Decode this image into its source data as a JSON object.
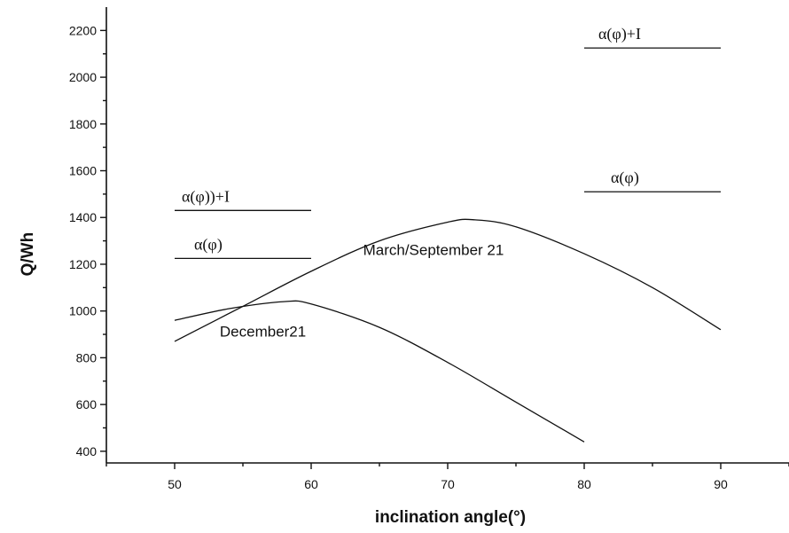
{
  "chart_data": {
    "type": "line",
    "xlabel": "inclination angle(°)",
    "ylabel": "Q/Wh",
    "xlim": [
      45,
      95
    ],
    "ylim": [
      350,
      2300
    ],
    "x_ticks": [
      50,
      60,
      70,
      80,
      90
    ],
    "y_ticks": [
      400,
      600,
      800,
      1000,
      1200,
      1400,
      1600,
      1800,
      2000,
      2200
    ],
    "grid": false,
    "series": [
      {
        "name": "March/September 21",
        "x": [
          50,
          55,
          60,
          65,
          70,
          72,
          75,
          80,
          85,
          90
        ],
        "y": [
          870,
          1020,
          1170,
          1300,
          1380,
          1390,
          1360,
          1245,
          1100,
          920
        ]
      },
      {
        "name": "December21",
        "x": [
          50,
          54,
          58,
          60,
          65,
          70,
          75,
          80
        ],
        "y": [
          960,
          1010,
          1040,
          1030,
          930,
          780,
          610,
          440
        ]
      }
    ],
    "annotations": [
      {
        "text": "α(φ))+I",
        "segment_x": [
          50,
          60
        ],
        "segment_y": 1430
      },
      {
        "text": "α(φ)",
        "segment_x": [
          50,
          60
        ],
        "segment_y": 1225
      },
      {
        "text": "α(φ)+I",
        "segment_x": [
          80,
          90
        ],
        "segment_y": 2125
      },
      {
        "text": "α(φ)",
        "segment_x": [
          80,
          90
        ],
        "segment_y": 1510
      }
    ]
  }
}
